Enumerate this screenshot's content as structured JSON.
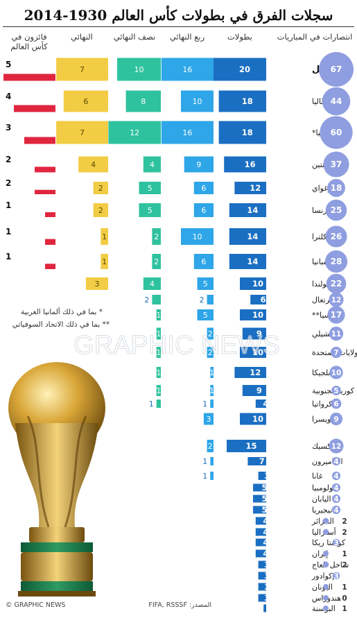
{
  "title": "سجلات الفرق في بطولات كأس العالم 1930-2014",
  "headers": {
    "wins": "انتصارات في المباريات",
    "tournaments": "بطولات",
    "quarter": "ربع النهائي",
    "semi": "نصف النهائي",
    "final": "النهائي",
    "winners": "فائزون في كأس العالم"
  },
  "notes": {
    "germany": "* بما في ذلك ألمانيا الغربية",
    "russia": "** بما في ذلك الاتحاد السوفياتي"
  },
  "watermark": "GRAPHIC NEWS",
  "footer": {
    "source": "المصدر: FIFA, RSSSF",
    "credit": "© GRAPHIC NEWS"
  },
  "colors": {
    "wins_bubble": "#8f9ee0",
    "tournaments": "#1b6fc2",
    "quarter": "#2ea6e8",
    "semi": "#2fc29e",
    "final": "#f2cc44",
    "winners": "#e0263f"
  },
  "chart_data": {
    "type": "bar",
    "columns": [
      "wins",
      "tournaments",
      "quarter",
      "semi",
      "final",
      "winners"
    ],
    "rows": [
      {
        "country": "البرازيل",
        "wins": 67,
        "tournaments": 20,
        "quarter": 16,
        "semi": 10,
        "final": 7,
        "winners": 5
      },
      {
        "country": "إيطاليا",
        "wins": 44,
        "tournaments": 18,
        "quarter": 10,
        "semi": 8,
        "final": 6,
        "winners": 4
      },
      {
        "country": "ألمانيا*",
        "wins": 60,
        "tournaments": 18,
        "quarter": 16,
        "semi": 12,
        "final": 7,
        "winners": 3
      },
      {
        "country": "الأرجنتين",
        "wins": 37,
        "tournaments": 16,
        "quarter": 9,
        "semi": 4,
        "final": 4,
        "winners": 2
      },
      {
        "country": "أوروغواي",
        "wins": 18,
        "tournaments": 12,
        "quarter": 6,
        "semi": 5,
        "final": 2,
        "winners": 2
      },
      {
        "country": "فرنسا",
        "wins": 25,
        "tournaments": 14,
        "quarter": 6,
        "semi": 5,
        "final": 2,
        "winners": 1
      },
      {
        "country": "إنكلترا",
        "wins": 26,
        "tournaments": 14,
        "quarter": 10,
        "semi": 2,
        "final": 1,
        "winners": 1
      },
      {
        "country": "إسبانيا",
        "wins": 28,
        "tournaments": 14,
        "quarter": 6,
        "semi": 2,
        "final": 1,
        "winners": 1
      },
      {
        "country": "هولندا",
        "wins": 22,
        "tournaments": 10,
        "quarter": 5,
        "semi": 4,
        "final": 3,
        "winners": 0
      },
      {
        "country": "البرتغال",
        "wins": 12,
        "tournaments": 6,
        "quarter": 2,
        "semi": 2,
        "final": 0,
        "winners": 0
      },
      {
        "country": "روسيا**",
        "wins": 17,
        "tournaments": 10,
        "quarter": 5,
        "semi": 1,
        "final": 0,
        "winners": 0
      },
      {
        "country": "تشيلي",
        "wins": 11,
        "tournaments": 9,
        "quarter": 2,
        "semi": 1,
        "final": 0,
        "winners": 0
      },
      {
        "country": "الولايات المتحدة",
        "wins": 7,
        "tournaments": 10,
        "quarter": 2,
        "semi": 1,
        "final": 0,
        "winners": 0
      },
      {
        "country": "بلجيكا",
        "wins": 10,
        "tournaments": 12,
        "quarter": 1,
        "semi": 1,
        "final": 0,
        "winners": 0
      },
      {
        "country": "كوريا الجنوبية",
        "wins": 5,
        "tournaments": 9,
        "quarter": 1,
        "semi": 1,
        "final": 0,
        "winners": 0
      },
      {
        "country": "كرواتيا",
        "wins": 6,
        "tournaments": 4,
        "quarter": 1,
        "semi": 1,
        "final": 0,
        "winners": 0
      },
      {
        "country": "سويسرا",
        "wins": 9,
        "tournaments": 10,
        "quarter": 3,
        "semi": 0,
        "final": 0,
        "winners": 0
      },
      {
        "country": "المكسيك",
        "wins": 12,
        "tournaments": 15,
        "quarter": 2,
        "semi": 0,
        "final": 0,
        "winners": 0
      },
      {
        "country": "الكاميرون",
        "wins": 4,
        "tournaments": 7,
        "quarter": 1,
        "semi": 0,
        "final": 0,
        "winners": 0
      },
      {
        "country": "غانا",
        "wins": 4,
        "tournaments": 3,
        "quarter": 1,
        "semi": 0,
        "final": 0,
        "winners": 0
      },
      {
        "country": "كولومبيا",
        "wins": 4,
        "tournaments": 5,
        "quarter": 0,
        "semi": 0,
        "final": 0,
        "winners": 0
      },
      {
        "country": "اليابان",
        "wins": 4,
        "tournaments": 5,
        "quarter": 0,
        "semi": 0,
        "final": 0,
        "winners": 0
      },
      {
        "country": "نيجيريا",
        "wins": 4,
        "tournaments": 5,
        "quarter": 0,
        "semi": 0,
        "final": 0,
        "winners": 0
      },
      {
        "country": "الجزائر",
        "wins": 2,
        "tournaments": 4,
        "quarter": 0,
        "semi": 0,
        "final": 0,
        "winners": 0
      },
      {
        "country": "أستراليا",
        "wins": 2,
        "tournaments": 4,
        "quarter": 0,
        "semi": 0,
        "final": 0,
        "winners": 0
      },
      {
        "country": "كوستا ريكا",
        "wins": 3,
        "tournaments": 4,
        "quarter": 0,
        "semi": 0,
        "final": 0,
        "winners": 0
      },
      {
        "country": "إيران",
        "wins": 1,
        "tournaments": 4,
        "quarter": 0,
        "semi": 0,
        "final": 0,
        "winners": 0
      },
      {
        "country": "ساحل العاج",
        "wins": 2,
        "tournaments": 3,
        "quarter": 0,
        "semi": 0,
        "final": 0,
        "winners": 0
      },
      {
        "country": "الإكوادور",
        "wins": 3,
        "tournaments": 3,
        "quarter": 0,
        "semi": 0,
        "final": 0,
        "winners": 0
      },
      {
        "country": "اليونان",
        "wins": 1,
        "tournaments": 3,
        "quarter": 0,
        "semi": 0,
        "final": 0,
        "winners": 0
      },
      {
        "country": "هندوراس",
        "wins": 0,
        "tournaments": 3,
        "quarter": 0,
        "semi": 0,
        "final": 0,
        "winners": 0
      },
      {
        "country": "البوسنة",
        "wins": 1,
        "tournaments": 1,
        "quarter": 0,
        "semi": 0,
        "final": 0,
        "winners": 0
      }
    ]
  }
}
